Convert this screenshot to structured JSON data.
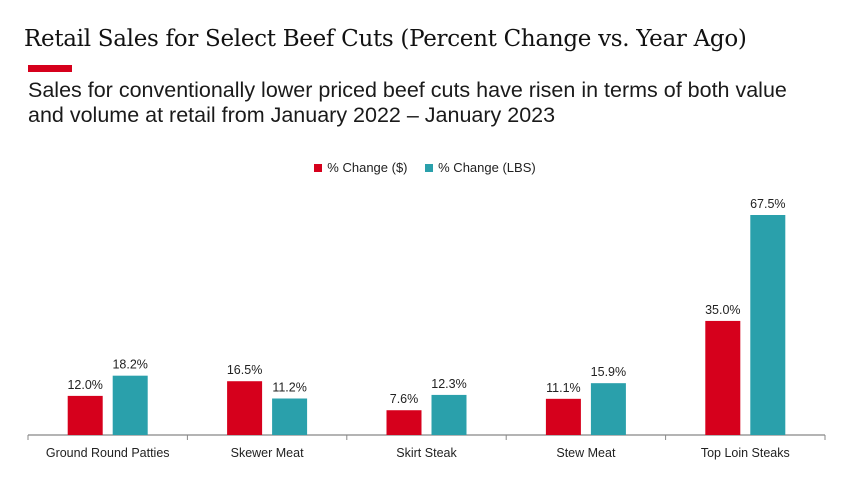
{
  "title": "Retail Sales for Select Beef Cuts (Percent Change vs. Year Ago)",
  "subtitle": "Sales for conventionally lower priced beef cuts have risen in terms of both value and volume at retail from January 2022 – January 2023",
  "colors": {
    "accent": "#d6001c",
    "dollars": "#d6001c",
    "lbs": "#2aa0ab"
  },
  "chart_data": {
    "type": "bar",
    "title": "",
    "xlabel": "",
    "ylabel": "",
    "ylim": [
      0,
      70
    ],
    "grid": false,
    "legend_placement": "top",
    "categories": [
      "Ground Round Patties",
      "Skewer Meat",
      "Skirt Steak",
      "Stew Meat",
      "Top Loin Steaks"
    ],
    "series": [
      {
        "name": "% Change ($)",
        "color": "#d6001c",
        "values": [
          12.0,
          16.5,
          7.6,
          11.1,
          35.0
        ],
        "labels": [
          "12.0%",
          "16.5%",
          "7.6%",
          "11.1%",
          "35.0%"
        ]
      },
      {
        "name": "% Change (LBS)",
        "color": "#2aa0ab",
        "values": [
          18.2,
          11.2,
          12.3,
          15.9,
          67.5
        ],
        "labels": [
          "18.2%",
          "11.2%",
          "12.3%",
          "15.9%",
          "67.5%"
        ]
      }
    ]
  }
}
